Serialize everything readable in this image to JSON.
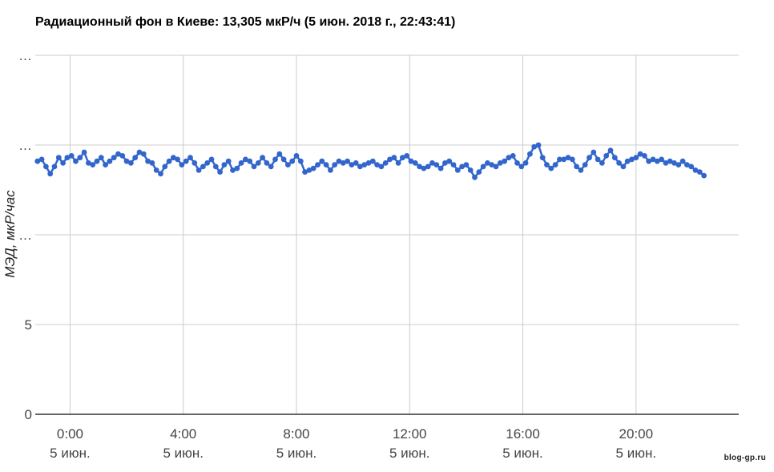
{
  "chart_data": {
    "type": "line",
    "title": "Радиационный фон в Киеве: 13,305 мкР/ч (5 июн. 2018 г., 22:43:41)",
    "ylabel": "МЭД, мкР/час",
    "xlabel": "",
    "ylim": [
      0,
      20
    ],
    "y_ticks": [
      {
        "value": 0,
        "label": "0"
      },
      {
        "value": 5,
        "label": "5"
      },
      {
        "value": 10,
        "label": "…"
      },
      {
        "value": 15,
        "label": "…"
      },
      {
        "value": 20,
        "label": "…"
      }
    ],
    "x_unit": "hour of day",
    "xlim": [
      -1.23,
      23.63
    ],
    "x_ticks": [
      {
        "value": 0,
        "time": "0:00",
        "date": "5 июн."
      },
      {
        "value": 4,
        "time": "4:00",
        "date": "5 июн."
      },
      {
        "value": 8,
        "time": "8:00",
        "date": "5 июн."
      },
      {
        "value": 12,
        "time": "12:00",
        "date": "5 июн."
      },
      {
        "value": 16,
        "time": "16:00",
        "date": "5 июн."
      },
      {
        "value": 20,
        "time": "20:00",
        "date": "5 июн."
      }
    ],
    "grid": true,
    "series_color": "#3366cc",
    "series": [
      {
        "points": [
          [
            -1.15,
            14.1
          ],
          [
            -1.0,
            14.2
          ],
          [
            -0.85,
            13.8
          ],
          [
            -0.7,
            13.4
          ],
          [
            -0.55,
            13.8
          ],
          [
            -0.4,
            14.3
          ],
          [
            -0.25,
            14.0
          ],
          [
            -0.1,
            14.3
          ],
          [
            0.05,
            14.4
          ],
          [
            0.2,
            14.1
          ],
          [
            0.35,
            14.3
          ],
          [
            0.5,
            14.6
          ],
          [
            0.65,
            14.0
          ],
          [
            0.8,
            13.9
          ],
          [
            0.95,
            14.1
          ],
          [
            1.1,
            14.3
          ],
          [
            1.25,
            13.9
          ],
          [
            1.4,
            14.1
          ],
          [
            1.55,
            14.3
          ],
          [
            1.7,
            14.5
          ],
          [
            1.85,
            14.4
          ],
          [
            2.0,
            14.1
          ],
          [
            2.15,
            14.0
          ],
          [
            2.3,
            14.3
          ],
          [
            2.45,
            14.6
          ],
          [
            2.6,
            14.5
          ],
          [
            2.75,
            14.1
          ],
          [
            2.9,
            14.0
          ],
          [
            3.05,
            13.6
          ],
          [
            3.2,
            13.4
          ],
          [
            3.35,
            13.8
          ],
          [
            3.5,
            14.1
          ],
          [
            3.65,
            14.3
          ],
          [
            3.8,
            14.2
          ],
          [
            3.95,
            13.9
          ],
          [
            4.1,
            14.1
          ],
          [
            4.25,
            14.3
          ],
          [
            4.4,
            14.0
          ],
          [
            4.55,
            13.6
          ],
          [
            4.7,
            13.8
          ],
          [
            4.85,
            14.0
          ],
          [
            5.0,
            14.2
          ],
          [
            5.15,
            13.8
          ],
          [
            5.3,
            13.5
          ],
          [
            5.45,
            13.9
          ],
          [
            5.6,
            14.1
          ],
          [
            5.75,
            13.6
          ],
          [
            5.9,
            13.7
          ],
          [
            6.05,
            14.0
          ],
          [
            6.2,
            14.2
          ],
          [
            6.35,
            14.1
          ],
          [
            6.5,
            13.8
          ],
          [
            6.65,
            14.0
          ],
          [
            6.8,
            14.3
          ],
          [
            6.95,
            14.0
          ],
          [
            7.1,
            13.8
          ],
          [
            7.25,
            14.2
          ],
          [
            7.4,
            14.5
          ],
          [
            7.55,
            14.2
          ],
          [
            7.7,
            13.9
          ],
          [
            7.85,
            14.1
          ],
          [
            8.0,
            14.4
          ],
          [
            8.15,
            14.1
          ],
          [
            8.3,
            13.5
          ],
          [
            8.45,
            13.6
          ],
          [
            8.6,
            13.7
          ],
          [
            8.75,
            13.9
          ],
          [
            8.9,
            14.1
          ],
          [
            9.05,
            13.9
          ],
          [
            9.2,
            13.6
          ],
          [
            9.35,
            13.9
          ],
          [
            9.5,
            14.1
          ],
          [
            9.65,
            14.0
          ],
          [
            9.8,
            14.1
          ],
          [
            9.95,
            13.9
          ],
          [
            10.1,
            14.0
          ],
          [
            10.25,
            13.8
          ],
          [
            10.4,
            13.9
          ],
          [
            10.55,
            14.0
          ],
          [
            10.7,
            14.1
          ],
          [
            10.85,
            13.9
          ],
          [
            11.0,
            13.8
          ],
          [
            11.15,
            14.0
          ],
          [
            11.3,
            14.2
          ],
          [
            11.45,
            14.3
          ],
          [
            11.6,
            14.0
          ],
          [
            11.75,
            14.3
          ],
          [
            11.9,
            14.4
          ],
          [
            12.05,
            14.1
          ],
          [
            12.2,
            14.0
          ],
          [
            12.35,
            13.8
          ],
          [
            12.5,
            13.7
          ],
          [
            12.65,
            13.8
          ],
          [
            12.8,
            14.0
          ],
          [
            12.95,
            13.9
          ],
          [
            13.1,
            13.7
          ],
          [
            13.25,
            14.0
          ],
          [
            13.4,
            14.1
          ],
          [
            13.55,
            13.9
          ],
          [
            13.7,
            13.6
          ],
          [
            13.85,
            13.8
          ],
          [
            14.0,
            13.9
          ],
          [
            14.15,
            13.6
          ],
          [
            14.3,
            13.2
          ],
          [
            14.45,
            13.5
          ],
          [
            14.6,
            13.8
          ],
          [
            14.75,
            14.0
          ],
          [
            14.9,
            13.9
          ],
          [
            15.05,
            13.8
          ],
          [
            15.2,
            14.0
          ],
          [
            15.35,
            14.1
          ],
          [
            15.5,
            14.3
          ],
          [
            15.65,
            14.4
          ],
          [
            15.8,
            14.0
          ],
          [
            15.95,
            13.8
          ],
          [
            16.1,
            14.0
          ],
          [
            16.25,
            14.5
          ],
          [
            16.4,
            14.9
          ],
          [
            16.55,
            15.0
          ],
          [
            16.7,
            14.3
          ],
          [
            16.85,
            13.9
          ],
          [
            17.0,
            13.7
          ],
          [
            17.15,
            13.9
          ],
          [
            17.3,
            14.2
          ],
          [
            17.45,
            14.2
          ],
          [
            17.6,
            14.3
          ],
          [
            17.75,
            14.2
          ],
          [
            17.9,
            13.8
          ],
          [
            18.05,
            13.6
          ],
          [
            18.2,
            13.9
          ],
          [
            18.35,
            14.3
          ],
          [
            18.5,
            14.6
          ],
          [
            18.65,
            14.2
          ],
          [
            18.8,
            14.0
          ],
          [
            18.95,
            14.4
          ],
          [
            19.1,
            14.7
          ],
          [
            19.25,
            14.3
          ],
          [
            19.4,
            14.0
          ],
          [
            19.55,
            13.8
          ],
          [
            19.7,
            14.1
          ],
          [
            19.85,
            14.2
          ],
          [
            20.0,
            14.3
          ],
          [
            20.15,
            14.5
          ],
          [
            20.3,
            14.4
          ],
          [
            20.45,
            14.1
          ],
          [
            20.6,
            14.2
          ],
          [
            20.75,
            14.1
          ],
          [
            20.9,
            14.2
          ],
          [
            21.05,
            14.0
          ],
          [
            21.2,
            14.1
          ],
          [
            21.35,
            14.0
          ],
          [
            21.5,
            13.9
          ],
          [
            21.65,
            14.1
          ],
          [
            21.8,
            13.9
          ],
          [
            21.95,
            13.8
          ],
          [
            22.1,
            13.6
          ],
          [
            22.25,
            13.5
          ],
          [
            22.4,
            13.3
          ]
        ]
      }
    ]
  },
  "watermark": "blog-gp.ru"
}
